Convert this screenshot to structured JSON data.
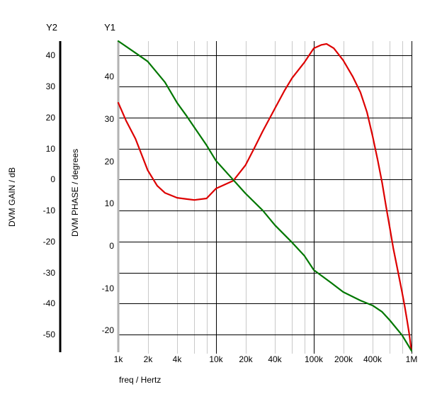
{
  "header": {
    "y2_title": "Y2",
    "y1_title": "Y1"
  },
  "chart_data": {
    "type": "line",
    "title": "",
    "x_axis": {
      "label": "freq / Hertz",
      "scale": "log",
      "min_hz": 1000,
      "max_hz": 1000000,
      "ticks": [
        {
          "hz": 1000,
          "text": "1k",
          "major": true
        },
        {
          "hz": 2000,
          "text": "2k",
          "major": false
        },
        {
          "hz": 4000,
          "text": "4k",
          "major": false
        },
        {
          "hz": 6000,
          "text": "",
          "major": false
        },
        {
          "hz": 8000,
          "text": "",
          "major": false
        },
        {
          "hz": 10000,
          "text": "10k",
          "major": true
        },
        {
          "hz": 20000,
          "text": "20k",
          "major": false
        },
        {
          "hz": 40000,
          "text": "40k",
          "major": false
        },
        {
          "hz": 60000,
          "text": "",
          "major": false
        },
        {
          "hz": 80000,
          "text": "",
          "major": false
        },
        {
          "hz": 100000,
          "text": "100k",
          "major": true
        },
        {
          "hz": 200000,
          "text": "200k",
          "major": false
        },
        {
          "hz": 400000,
          "text": "400k",
          "major": false
        },
        {
          "hz": 600000,
          "text": "",
          "major": false
        },
        {
          "hz": 800000,
          "text": "",
          "major": false
        },
        {
          "hz": 1000000,
          "text": "1M",
          "major": true
        }
      ]
    },
    "y2_axis": {
      "title": "Y2",
      "label": "DVM GAIN / dB",
      "unit": "dB",
      "ticks": [
        40,
        30,
        20,
        10,
        0,
        -10,
        -20,
        -30,
        -40,
        -50
      ],
      "top_value": 44.6,
      "bottom_value": -55.2,
      "axis_line_color": "#000000",
      "grid_source": true
    },
    "y1_axis": {
      "title": "Y1",
      "label": "DVM PHASE / degrees",
      "unit": "degrees",
      "ticks": [
        40,
        30,
        20,
        10,
        0,
        -10,
        -20
      ],
      "top_value": 48.4,
      "bottom_value": -24.8,
      "axis_line_color": "#b3b3b3"
    },
    "colors": {
      "grid_major": "#000000",
      "grid_minor": "#c9c9c9",
      "background": "#ffffff"
    },
    "series": [
      {
        "name": "DVM GAIN",
        "axis": "y2",
        "color": "#dd0000",
        "points": [
          [
            1000,
            24.7
          ],
          [
            1200,
            19.0
          ],
          [
            1500,
            13.1
          ],
          [
            2000,
            3.0
          ],
          [
            2500,
            -2.0
          ],
          [
            3000,
            -4.3
          ],
          [
            4000,
            -5.9
          ],
          [
            5000,
            -6.3
          ],
          [
            6000,
            -6.6
          ],
          [
            8000,
            -6.1
          ],
          [
            10000,
            -2.9
          ],
          [
            15000,
            -0.4
          ],
          [
            20000,
            4.6
          ],
          [
            25000,
            10.5
          ],
          [
            30000,
            15.5
          ],
          [
            40000,
            22.9
          ],
          [
            50000,
            28.6
          ],
          [
            60000,
            32.7
          ],
          [
            80000,
            37.7
          ],
          [
            100000,
            42.3
          ],
          [
            120000,
            43.4
          ],
          [
            135000,
            43.7
          ],
          [
            160000,
            42.3
          ],
          [
            200000,
            38.4
          ],
          [
            250000,
            33.2
          ],
          [
            300000,
            28.1
          ],
          [
            350000,
            21.7
          ],
          [
            400000,
            13.9
          ],
          [
            450000,
            6.4
          ],
          [
            500000,
            -1.1
          ],
          [
            550000,
            -8.9
          ],
          [
            600000,
            -15.7
          ],
          [
            650000,
            -22.1
          ],
          [
            700000,
            -27.1
          ],
          [
            750000,
            -31.9
          ],
          [
            800000,
            -36.3
          ],
          [
            850000,
            -40.8
          ],
          [
            900000,
            -45.4
          ],
          [
            950000,
            -50.0
          ],
          [
            980000,
            -53.4
          ],
          [
            995000,
            -55.0
          ]
        ]
      },
      {
        "name": "DVM PHASE",
        "axis": "y1",
        "color": "#007700",
        "points": [
          [
            1000,
            48.4
          ],
          [
            1500,
            45.6
          ],
          [
            2000,
            43.6
          ],
          [
            3000,
            38.7
          ],
          [
            4000,
            33.8
          ],
          [
            5000,
            30.7
          ],
          [
            6000,
            28.0
          ],
          [
            8000,
            23.8
          ],
          [
            10000,
            20.1
          ],
          [
            15000,
            15.6
          ],
          [
            20000,
            12.4
          ],
          [
            30000,
            8.4
          ],
          [
            40000,
            4.9
          ],
          [
            60000,
            0.8
          ],
          [
            80000,
            -2.3
          ],
          [
            100000,
            -5.7
          ],
          [
            150000,
            -8.7
          ],
          [
            200000,
            -10.9
          ],
          [
            300000,
            -12.9
          ],
          [
            400000,
            -14.1
          ],
          [
            500000,
            -15.6
          ],
          [
            600000,
            -17.6
          ],
          [
            800000,
            -21.1
          ],
          [
            1000000,
            -24.8
          ]
        ]
      }
    ]
  }
}
